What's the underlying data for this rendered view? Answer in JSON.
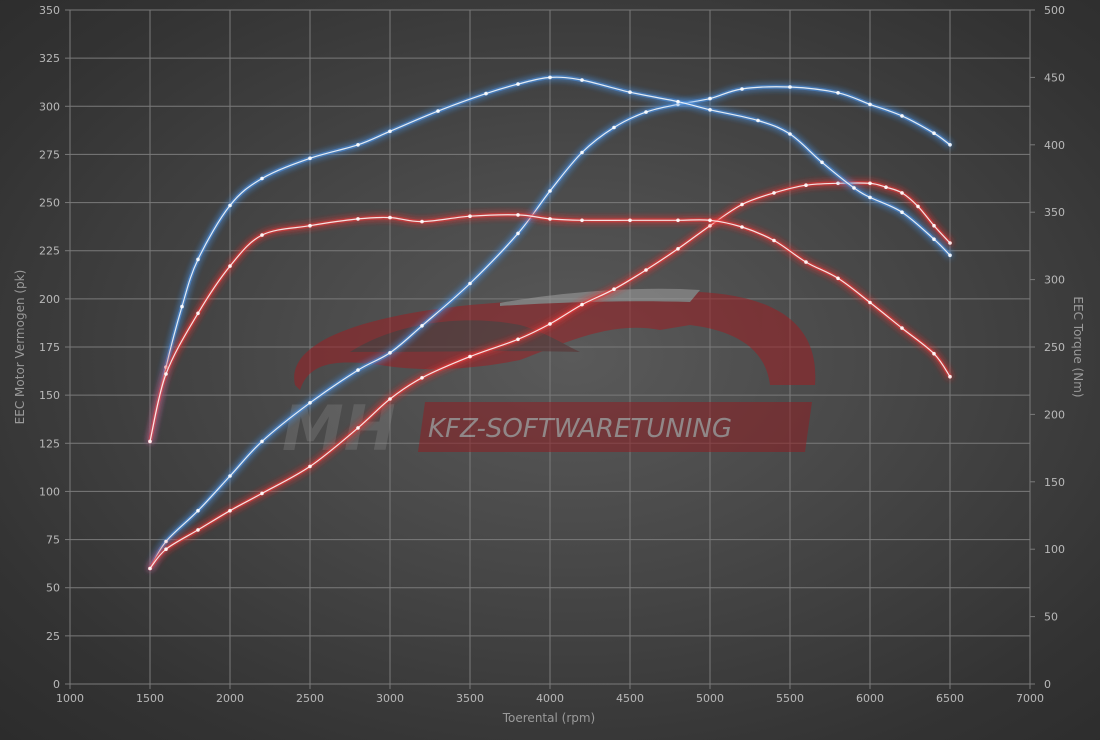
{
  "chart_data": {
    "type": "line",
    "xlabel": "Toerental (rpm)",
    "ylabel_left": "EEC Motor Vermogen (pk)",
    "ylabel_right": "EEC Torque (Nm)",
    "xlim": [
      1000,
      7000
    ],
    "ylim_left": [
      0,
      350
    ],
    "ylim_right": [
      0,
      500
    ],
    "xticks": [
      1000,
      1500,
      2000,
      2500,
      3000,
      3500,
      4000,
      4500,
      5000,
      5500,
      6000,
      6500,
      7000
    ],
    "yticks_left": [
      0,
      25,
      50,
      75,
      100,
      125,
      150,
      175,
      200,
      225,
      250,
      275,
      300,
      325,
      350
    ],
    "yticks_right": [
      0,
      50,
      100,
      150,
      200,
      250,
      300,
      350,
      400,
      450,
      500
    ],
    "grid": true,
    "colors": {
      "tuned": "#4a8fe0",
      "stock": "#e83a3a",
      "grid": "#7a7a7a"
    },
    "series": [
      {
        "axis": "left",
        "color": "tuned",
        "x": [
          1500,
          1600,
          1800,
          2000,
          2200,
          2500,
          2800,
          3000,
          3200,
          3500,
          3800,
          4000,
          4200,
          4400,
          4600,
          4800,
          5000,
          5200,
          5500,
          5800,
          6000,
          6200,
          6400,
          6500
        ],
        "y": [
          60,
          74,
          90,
          108,
          126,
          146,
          163,
          172,
          186,
          208,
          234,
          256,
          276,
          289,
          297,
          301,
          304,
          309,
          310,
          307,
          301,
          295,
          286,
          280
        ]
      },
      {
        "axis": "left",
        "color": "stock",
        "x": [
          1500,
          1600,
          1800,
          2000,
          2200,
          2500,
          2800,
          3000,
          3200,
          3500,
          3800,
          4000,
          4200,
          4400,
          4600,
          4800,
          5000,
          5200,
          5400,
          5600,
          5800,
          6000,
          6100,
          6200,
          6300,
          6400,
          6500
        ],
        "y": [
          60,
          70,
          80,
          90,
          99,
          113,
          133,
          148,
          159,
          170,
          179,
          187,
          197,
          205,
          215,
          226,
          238,
          249,
          255,
          259,
          260,
          260,
          258,
          255,
          248,
          238,
          229
        ]
      },
      {
        "axis": "right",
        "color": "tuned",
        "x": [
          1500,
          1600,
          1700,
          1800,
          2000,
          2200,
          2500,
          2800,
          3000,
          3300,
          3600,
          3800,
          4000,
          4200,
          4500,
          4800,
          5000,
          5300,
          5500,
          5700,
          5900,
          6000,
          6200,
          6400,
          6500
        ],
        "y": [
          180,
          235,
          280,
          315,
          355,
          375,
          390,
          400,
          410,
          425,
          438,
          445,
          450,
          448,
          439,
          432,
          426,
          418,
          408,
          387,
          368,
          361,
          350,
          330,
          318
        ]
      },
      {
        "axis": "right",
        "color": "stock",
        "x": [
          1500,
          1600,
          1800,
          2000,
          2200,
          2500,
          2800,
          3000,
          3200,
          3500,
          3800,
          4000,
          4200,
          4500,
          4800,
          5000,
          5200,
          5400,
          5600,
          5800,
          6000,
          6200,
          6400,
          6500
        ],
        "y": [
          180,
          230,
          275,
          310,
          333,
          340,
          345,
          346,
          343,
          347,
          348,
          345,
          344,
          344,
          344,
          344,
          339,
          329,
          313,
          301,
          283,
          264,
          245,
          228
        ]
      }
    ]
  },
  "watermark": {
    "mh": "MH",
    "text": "KFZ-SOFTWARETUNING"
  }
}
